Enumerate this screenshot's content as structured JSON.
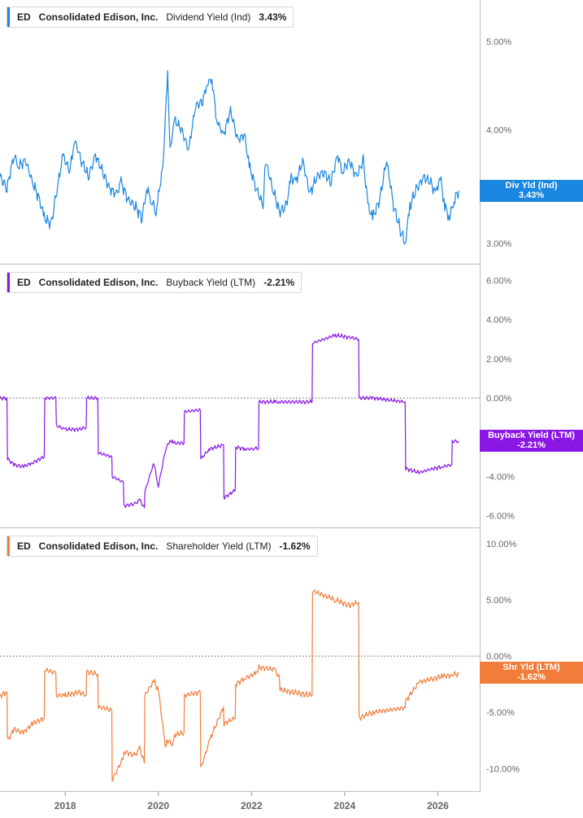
{
  "panels": [
    {
      "ticker": "ED",
      "company": "Consolidated Edison, Inc.",
      "metric": "Dividend Yield (Ind)",
      "value": "3.43%",
      "color": "#1a87e0",
      "tag_line1": "Div Yld (Ind)",
      "tag_line2": "3.43%"
    },
    {
      "ticker": "ED",
      "company": "Consolidated Edison, Inc.",
      "metric": "Buyback Yield (LTM)",
      "value": "-2.21%",
      "color": "#8b17e6",
      "tag_line1": "Buyback Yield (LTM)",
      "tag_line2": "-2.21%"
    },
    {
      "ticker": "ED",
      "company": "Consolidated Edison, Inc.",
      "metric": "Shareholder Yield (LTM)",
      "value": "-1.62%",
      "color": "#f27d3a",
      "tag_line1": "Shr Yld (LTM)",
      "tag_line2": "-1.62%"
    }
  ],
  "chart_data": [
    {
      "type": "line",
      "title": "ED Consolidated Edison, Inc. Dividend Yield (Ind) 3.43%",
      "y_scale": "log",
      "ylim": [
        2.85,
        5.5
      ],
      "yticks": [
        3.0,
        4.0,
        5.0
      ],
      "ytick_labels": [
        "3.00%",
        "4.00%",
        "5.00%"
      ],
      "xlim": [
        2016.6,
        2026.9
      ],
      "series": [
        {
          "name": "Dividend Yield (Ind)",
          "x": [
            2016.6,
            2016.75,
            2016.9,
            2017.0,
            2017.15,
            2017.3,
            2017.45,
            2017.55,
            2017.7,
            2017.85,
            2017.95,
            2018.1,
            2018.2,
            2018.35,
            2018.5,
            2018.65,
            2018.8,
            2018.95,
            2019.1,
            2019.2,
            2019.35,
            2019.5,
            2019.65,
            2019.75,
            2019.85,
            2019.95,
            2020.1,
            2020.2,
            2020.25,
            2020.35,
            2020.5,
            2020.65,
            2020.8,
            2020.95,
            2021.05,
            2021.15,
            2021.25,
            2021.4,
            2021.55,
            2021.7,
            2021.85,
            2021.95,
            2022.1,
            2022.25,
            2022.3,
            2022.45,
            2022.6,
            2022.75,
            2022.85,
            2022.95,
            2023.1,
            2023.25,
            2023.4,
            2023.55,
            2023.7,
            2023.85,
            2023.95,
            2024.1,
            2024.25,
            2024.4,
            2024.5,
            2024.6,
            2024.75,
            2024.9,
            2025.05,
            2025.2,
            2025.3,
            2025.4,
            2025.55,
            2025.7,
            2025.85,
            2025.95,
            2026.05,
            2026.15,
            2026.25,
            2026.35,
            2026.45
          ],
          "y": [
            3.55,
            3.45,
            3.75,
            3.65,
            3.7,
            3.5,
            3.35,
            3.2,
            3.15,
            3.5,
            3.75,
            3.6,
            3.9,
            3.7,
            3.55,
            3.75,
            3.6,
            3.45,
            3.4,
            3.5,
            3.35,
            3.3,
            3.2,
            3.45,
            3.35,
            3.25,
            3.65,
            4.6,
            3.8,
            4.1,
            4.0,
            3.8,
            4.25,
            4.3,
            4.5,
            4.55,
            4.1,
            3.95,
            4.2,
            3.9,
            3.95,
            3.65,
            3.45,
            3.3,
            3.7,
            3.45,
            3.25,
            3.3,
            3.55,
            3.5,
            3.7,
            3.4,
            3.55,
            3.6,
            3.5,
            3.75,
            3.6,
            3.7,
            3.55,
            3.7,
            3.3,
            3.2,
            3.35,
            3.7,
            3.3,
            3.1,
            3.0,
            3.3,
            3.45,
            3.55,
            3.5,
            3.4,
            3.55,
            3.3,
            3.2,
            3.35,
            3.43
          ]
        }
      ]
    },
    {
      "type": "line",
      "title": "ED Consolidated Edison, Inc. Buyback Yield (LTM) -2.21%",
      "ylim": [
        -6.6,
        6.6
      ],
      "yticks": [
        -6,
        -4,
        0,
        2,
        4,
        6
      ],
      "ytick_labels": [
        "-6.00%",
        "-4.00%",
        "0.00%",
        "2.00%",
        "4.00%",
        "6.00%"
      ],
      "zero_line": 0,
      "xlim": [
        2016.6,
        2026.9
      ],
      "series": [
        {
          "name": "Buyback Yield (LTM)",
          "x": [
            2016.6,
            2016.75,
            2016.76,
            2016.9,
            2017.1,
            2017.3,
            2017.55,
            2017.56,
            2017.8,
            2017.81,
            2018.0,
            2018.3,
            2018.45,
            2018.46,
            2018.7,
            2018.71,
            2019.0,
            2019.01,
            2019.25,
            2019.26,
            2019.5,
            2019.6,
            2019.7,
            2019.71,
            2019.9,
            2020.0,
            2020.15,
            2020.2,
            2020.3,
            2020.35,
            2020.55,
            2020.56,
            2020.9,
            2020.91,
            2021.1,
            2021.4,
            2021.41,
            2021.65,
            2021.66,
            2021.85,
            2022.1,
            2022.15,
            2022.16,
            2022.5,
            2022.6,
            2022.61,
            2023.3,
            2023.31,
            2023.8,
            2024.1,
            2024.3,
            2024.31,
            2024.6,
            2025.3,
            2025.31,
            2025.6,
            2025.9,
            2026.1,
            2026.3,
            2026.31,
            2026.45
          ],
          "y": [
            0.0,
            0.0,
            -3.1,
            -3.4,
            -3.5,
            -3.3,
            -3.0,
            0.0,
            0.0,
            -1.4,
            -1.6,
            -1.6,
            -1.5,
            0.0,
            0.0,
            -2.8,
            -3.0,
            -4.0,
            -4.3,
            -5.5,
            -5.4,
            -5.2,
            -5.6,
            -4.8,
            -3.3,
            -4.5,
            -2.7,
            -2.3,
            -2.2,
            -2.3,
            -2.3,
            -0.7,
            -0.6,
            -3.1,
            -2.6,
            -2.4,
            -5.1,
            -4.7,
            -2.5,
            -2.6,
            -2.6,
            -2.6,
            -0.2,
            -0.2,
            -0.2,
            -0.2,
            -0.2,
            2.8,
            3.2,
            3.1,
            3.0,
            0.0,
            0.0,
            -0.2,
            -3.6,
            -3.8,
            -3.6,
            -3.5,
            -3.4,
            -2.2,
            -2.21
          ]
        }
      ]
    },
    {
      "type": "line",
      "title": "ED Consolidated Edison, Inc. Shareholder Yield (LTM) -1.62%",
      "ylim": [
        -12.0,
        11.0
      ],
      "yticks": [
        -10,
        -5,
        0,
        5,
        10
      ],
      "ytick_labels": [
        "-10.00%",
        "-5.00%",
        "0.00%",
        "5.00%",
        "10.00%"
      ],
      "zero_line": 0,
      "xlim": [
        2016.6,
        2026.9
      ],
      "series": [
        {
          "name": "Shareholder Yield (LTM)",
          "x": [
            2016.6,
            2016.75,
            2016.76,
            2016.9,
            2017.1,
            2017.3,
            2017.55,
            2017.56,
            2017.8,
            2017.81,
            2018.0,
            2018.3,
            2018.45,
            2018.46,
            2018.7,
            2018.71,
            2019.0,
            2019.01,
            2019.25,
            2019.26,
            2019.5,
            2019.6,
            2019.7,
            2019.71,
            2019.9,
            2020.0,
            2020.15,
            2020.2,
            2020.3,
            2020.35,
            2020.55,
            2020.56,
            2020.9,
            2020.91,
            2021.1,
            2021.4,
            2021.41,
            2021.65,
            2021.66,
            2021.85,
            2022.1,
            2022.15,
            2022.16,
            2022.5,
            2022.6,
            2022.61,
            2023.3,
            2023.31,
            2023.8,
            2024.1,
            2024.3,
            2024.31,
            2024.6,
            2025.3,
            2025.31,
            2025.6,
            2025.9,
            2026.1,
            2026.3,
            2026.31,
            2026.45
          ],
          "y": [
            -3.5,
            -3.2,
            -7.5,
            -6.5,
            -6.8,
            -6.0,
            -5.5,
            -1.2,
            -1.5,
            -3.5,
            -3.5,
            -3.2,
            -3.5,
            -1.4,
            -1.6,
            -4.5,
            -4.8,
            -11.0,
            -9.0,
            -8.5,
            -8.8,
            -8.2,
            -9.5,
            -3.5,
            -2.2,
            -3.0,
            -8.0,
            -7.5,
            -7.8,
            -7.0,
            -6.8,
            -3.5,
            -3.2,
            -10.0,
            -7.5,
            -4.5,
            -6.0,
            -5.5,
            -2.5,
            -2.0,
            -1.5,
            -1.0,
            -1.0,
            -1.2,
            -2.0,
            -3.0,
            -3.5,
            5.8,
            5.0,
            4.5,
            4.8,
            -5.5,
            -5.0,
            -4.6,
            -4.0,
            -2.3,
            -2.0,
            -1.8,
            -1.7,
            -1.62,
            -1.62
          ]
        }
      ]
    }
  ],
  "x_axis": {
    "ticks": [
      2018,
      2020,
      2022,
      2024,
      2026
    ],
    "tick_labels": [
      "2018",
      "2020",
      "2022",
      "2024",
      "2026"
    ]
  }
}
